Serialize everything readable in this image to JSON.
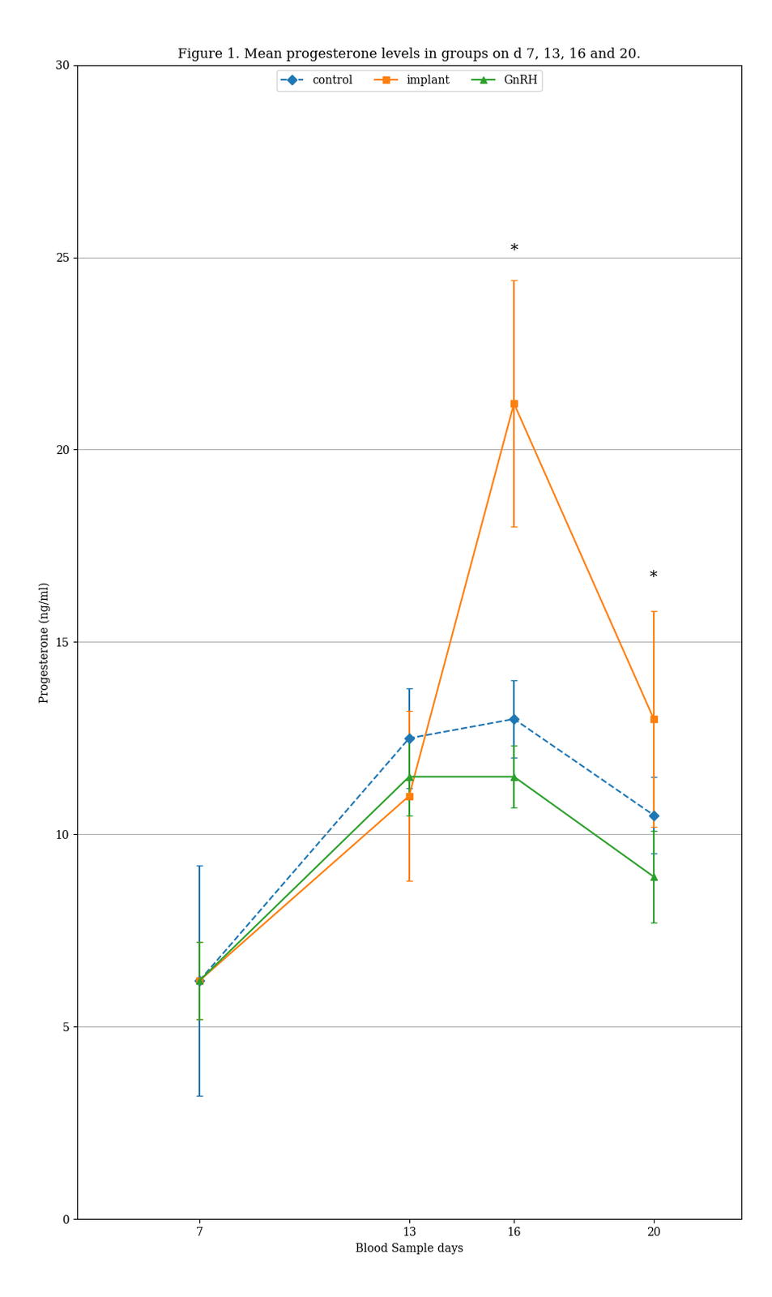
{
  "chart_data": {
    "type": "line",
    "title": "Figure 1. Mean progesterone levels in groups on d 7, 13, 16 and 20.",
    "x_label": "Blood Sample days",
    "y_label": "Progesterone (ng/ml)",
    "x": [
      7,
      13,
      16,
      20
    ],
    "series": [
      {
        "name": "control",
        "values": [
          6.2,
          12.5,
          13.0,
          10.5
        ],
        "errors": [
          3.0,
          1.3,
          1.0,
          1.0
        ],
        "marker": "diamond",
        "line_style": "dashed"
      },
      {
        "name": "implant",
        "values": [
          6.2,
          11.0,
          21.2,
          13.0
        ],
        "errors": [
          1.0,
          2.2,
          3.2,
          2.8
        ],
        "marker": "square",
        "line_style": "solid"
      },
      {
        "name": "GnRH",
        "values": [
          6.2,
          11.5,
          11.5,
          8.9
        ],
        "errors": [
          1.0,
          1.0,
          0.8,
          1.2
        ],
        "marker": "triangle",
        "line_style": "solid"
      }
    ],
    "annotations": [
      {
        "text": "*",
        "x": 16,
        "y": 25.0
      },
      {
        "text": "*",
        "x": 20,
        "y": 16.5
      }
    ],
    "xlim": [
      3.5,
      22.5
    ],
    "xticks": [
      7,
      13,
      16,
      20
    ],
    "ylim": [
      0,
      30
    ],
    "yticks": [
      0,
      5,
      10,
      15,
      20,
      25,
      30
    ],
    "grid": "y",
    "legend": "upper center"
  }
}
